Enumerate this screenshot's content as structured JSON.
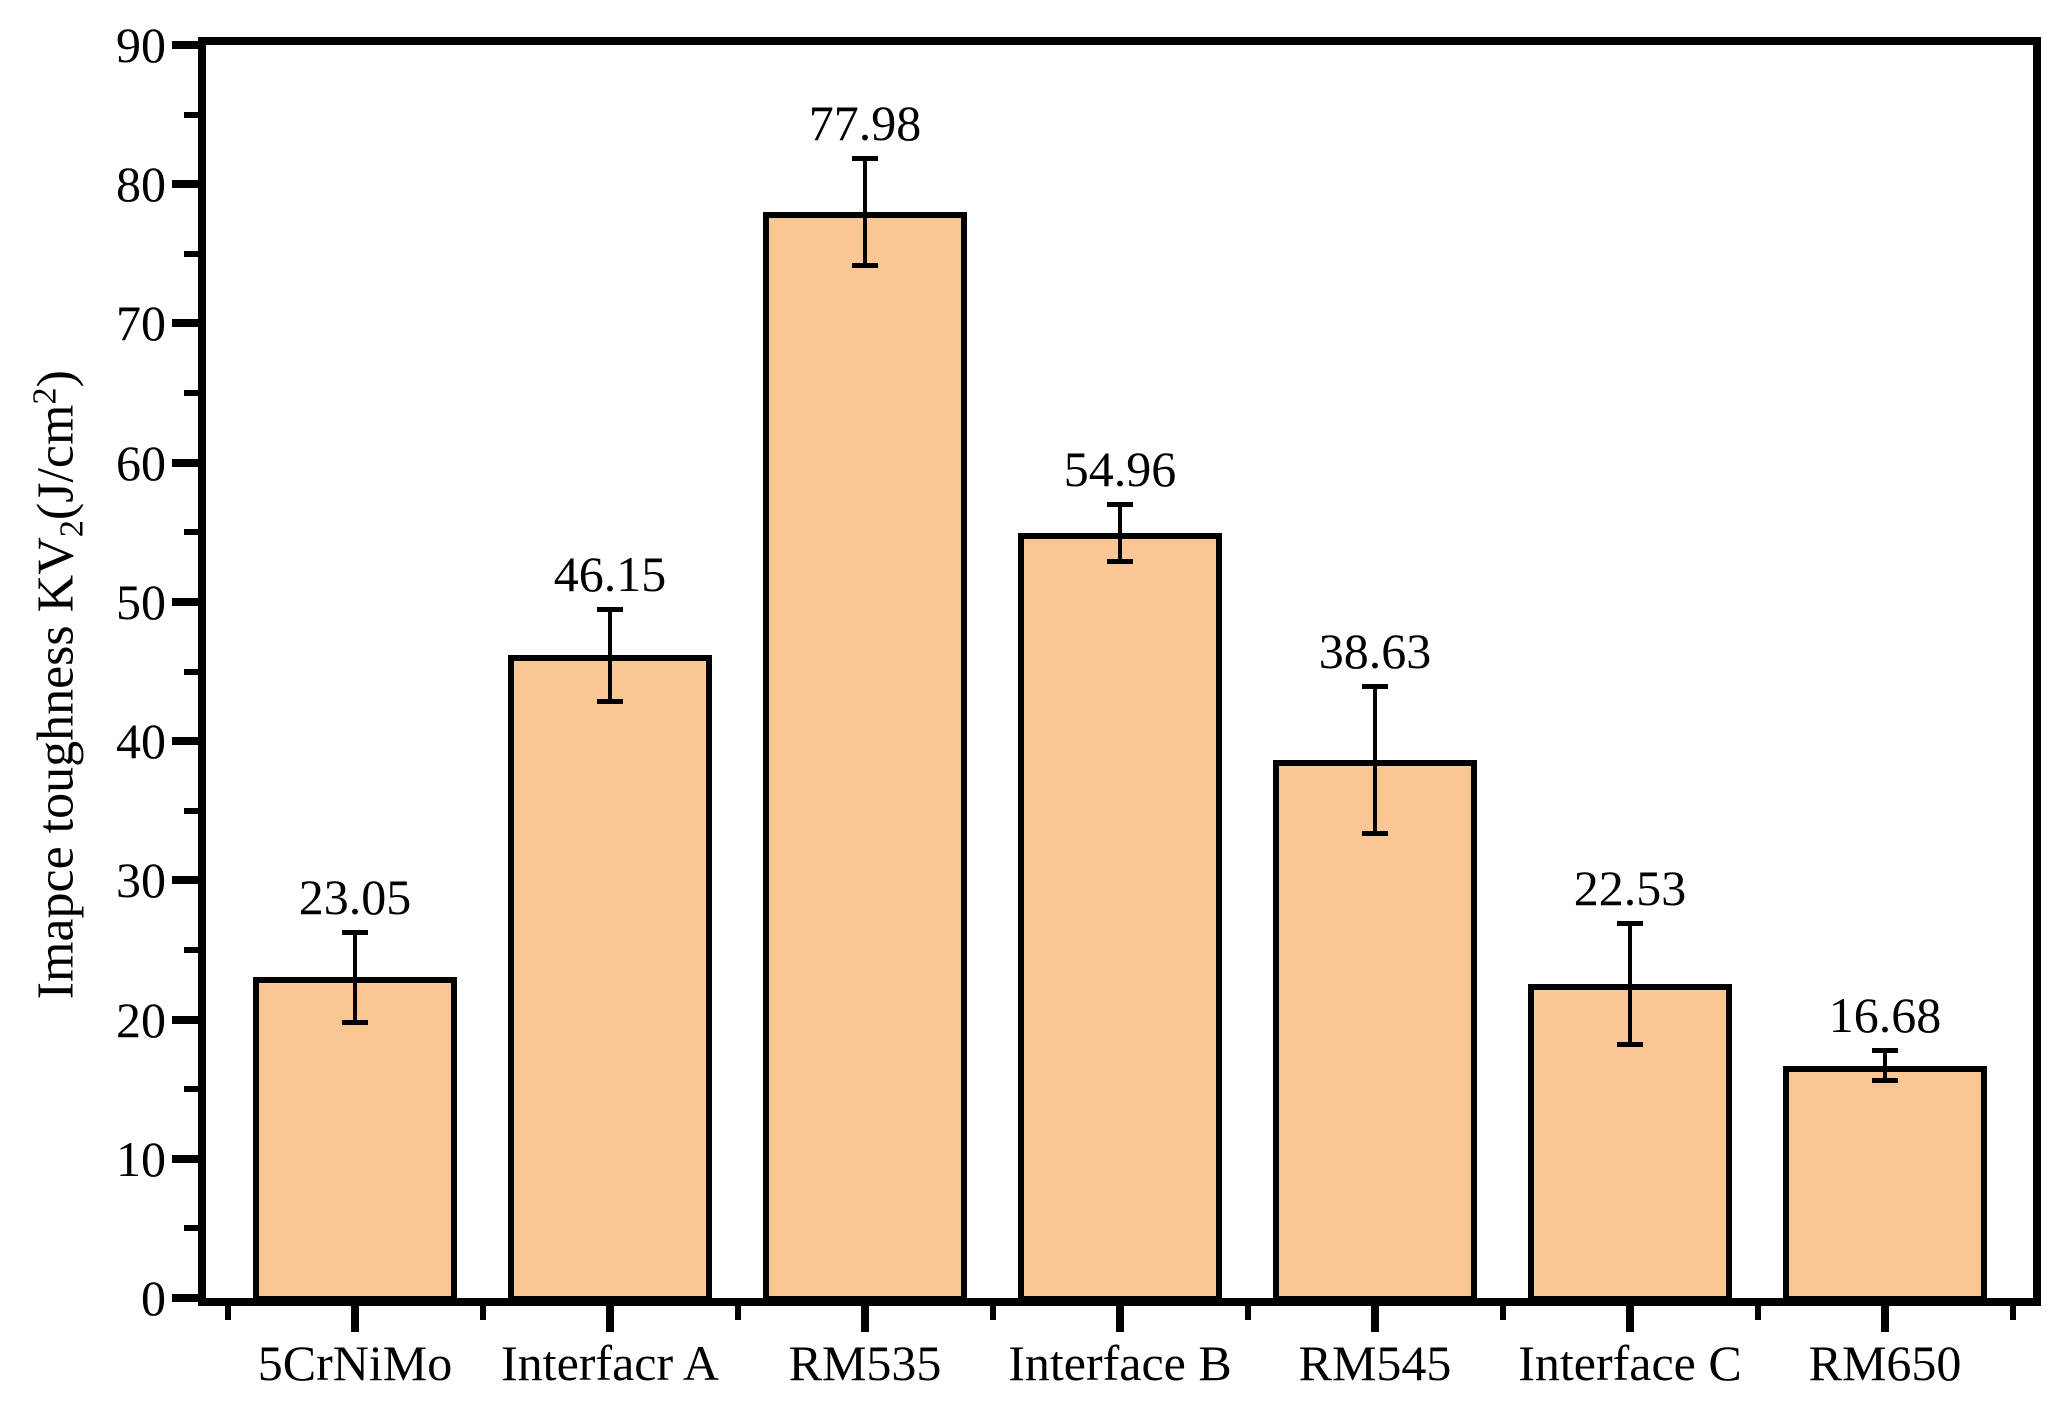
{
  "figure": {
    "background": "#FFFFFF"
  },
  "chart_data": {
    "type": "bar",
    "title": "",
    "categories": [
      "5CrNiMo",
      "Interfacr A",
      "RM535",
      "Interface B",
      "RM545",
      "Interface C",
      "RM650"
    ],
    "values": [
      23.05,
      46.15,
      77.98,
      54.96,
      38.63,
      22.53,
      16.68
    ],
    "errors": [
      3.2,
      3.3,
      3.8,
      2.0,
      5.25,
      4.3,
      1.05
    ],
    "value_labels": [
      "23.05",
      "46.15",
      "77.98",
      "54.96",
      "38.63",
      "22.53",
      "16.68"
    ],
    "ylabel": "Imapce toughness KV2(J/cm2)",
    "ylabel_parts": [
      {
        "text": "Imapce toughness KV",
        "style": "normal"
      },
      {
        "text": "2",
        "style": "sub"
      },
      {
        "text": "(J/cm",
        "style": "normal"
      },
      {
        "text": "2",
        "style": "sup"
      },
      {
        "text": ")",
        "style": "normal"
      }
    ],
    "xlabel": "",
    "ylim": [
      0,
      90
    ],
    "yticks": [
      0,
      10,
      20,
      30,
      40,
      50,
      60,
      70,
      80,
      90
    ],
    "yticks_minor": [
      5,
      15,
      25,
      35,
      45,
      55,
      65,
      75,
      85
    ],
    "grid": false,
    "legend": null,
    "error_bars": true,
    "bar_width_fraction": 0.8,
    "colors": {
      "bar_fill": "#FAC794",
      "bar_border": "#000000",
      "axis": "#000000",
      "text": "#000000",
      "background": "#FFFFFF"
    }
  }
}
